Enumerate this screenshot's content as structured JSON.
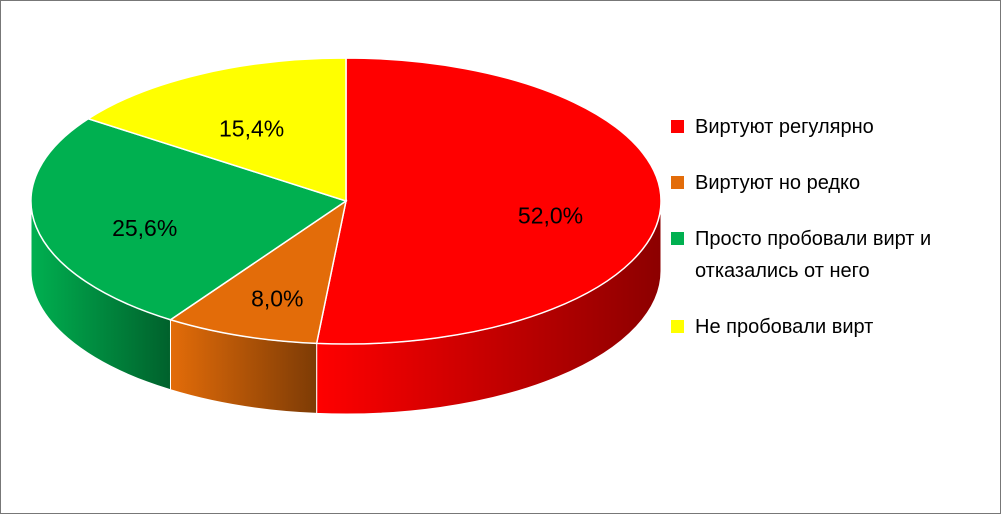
{
  "chart_data": {
    "type": "pie3d",
    "categories": [
      "Виртуют регулярно",
      "Виртуют но редко",
      "Просто пробовали вирт и отказались от него",
      "Не пробовали вирт"
    ],
    "values": [
      52.0,
      8.0,
      25.6,
      15.4
    ],
    "value_labels": [
      "52,0%",
      "8,0%",
      "25,6%",
      "15,4%"
    ],
    "colors": [
      "#ff0000",
      "#e36c09",
      "#00b050",
      "#ffff00"
    ],
    "legend": "right"
  }
}
